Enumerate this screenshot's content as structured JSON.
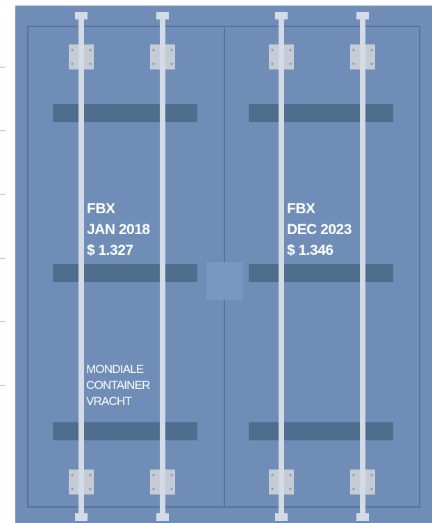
{
  "left_panel": {
    "label": "FBX",
    "date": "JAN 2018",
    "price": "$ 1.327"
  },
  "right_panel": {
    "label": "FBX",
    "date": "DEC 2023",
    "price": "$ 1.346"
  },
  "caption": {
    "lines": [
      "MONDIALE",
      "CONTAINER",
      "VRACHT"
    ]
  }
}
